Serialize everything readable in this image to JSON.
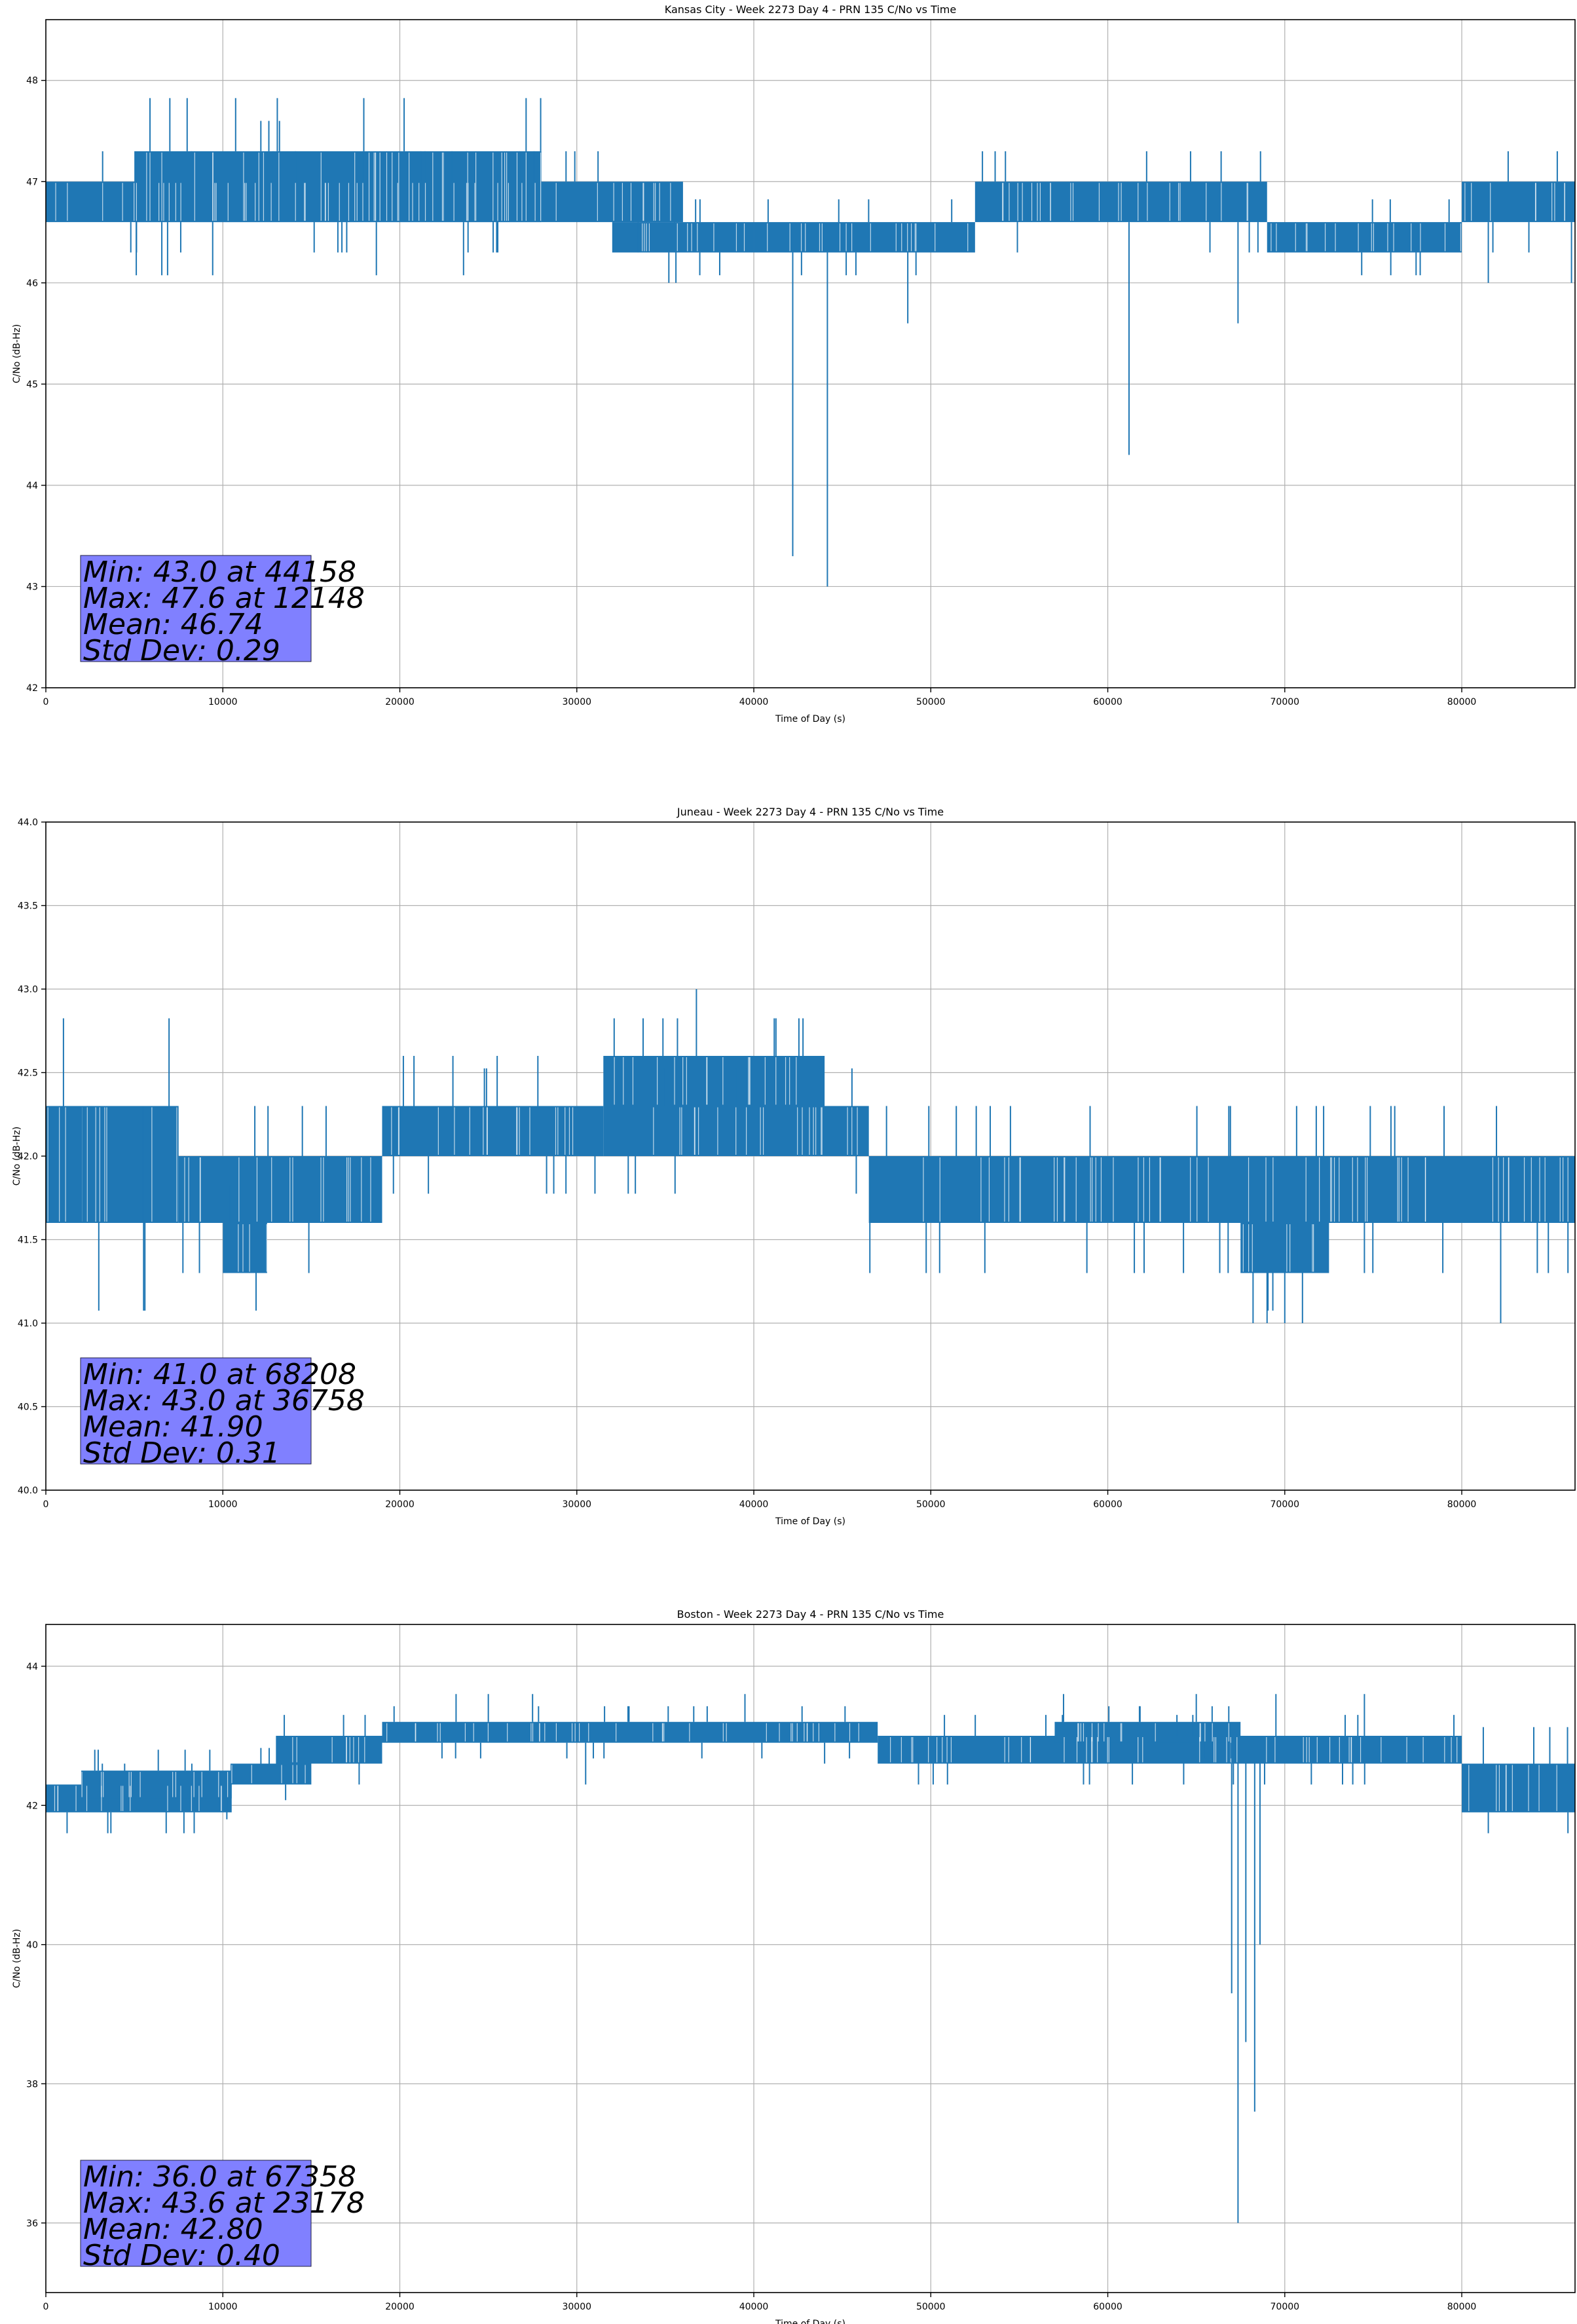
{
  "colors": {
    "series": "#1f77b4",
    "grid": "#b0b0b0",
    "stat_box": "#8080ff"
  },
  "chart_data": [
    {
      "type": "line",
      "title": "Kansas City - Week 2273 Day 4 - PRN 135 C/No vs Time",
      "xlabel": "Time of Day (s)",
      "ylabel": "C/No (dB-Hz)",
      "xlim": [
        0,
        86400
      ],
      "ylim": [
        42,
        48.6
      ],
      "xticks": [
        0,
        10000,
        20000,
        30000,
        40000,
        50000,
        60000,
        70000,
        80000
      ],
      "yticks": [
        42,
        43,
        44,
        45,
        46,
        47,
        48
      ],
      "ytick_labels": [
        "42",
        "43",
        "44",
        "45",
        "46",
        "47",
        "48"
      ],
      "grid": true,
      "stats": [
        "Min: 43.0 at 44158",
        "Max: 47.6 at 12148",
        "Mean: 46.74",
        "Std Dev: 0.29"
      ],
      "bands": [
        {
          "x": [
            0,
            28000
          ],
          "lo": 46.6,
          "hi": 47.0
        },
        {
          "x": [
            5000,
            28000
          ],
          "lo": 46.6,
          "hi": 47.3
        },
        {
          "x": [
            28000,
            36000
          ],
          "lo": 46.6,
          "hi": 47.0
        },
        {
          "x": [
            32000,
            40000
          ],
          "lo": 46.3,
          "hi": 46.6
        },
        {
          "x": [
            40000,
            52500
          ],
          "lo": 46.3,
          "hi": 46.6
        },
        {
          "x": [
            52500,
            69000
          ],
          "lo": 46.6,
          "hi": 47.0
        },
        {
          "x": [
            69000,
            80000
          ],
          "lo": 46.3,
          "hi": 46.6
        },
        {
          "x": [
            80000,
            86400
          ],
          "lo": 46.6,
          "hi": 47.0
        }
      ],
      "spikes": [
        {
          "x": 12148,
          "y": 47.6
        },
        {
          "x": 12600,
          "y": 47.6
        },
        {
          "x": 13200,
          "y": 47.6
        },
        {
          "x": 4800,
          "y": 46.3
        },
        {
          "x": 16500,
          "y": 46.3
        },
        {
          "x": 17000,
          "y": 46.3
        },
        {
          "x": 35200,
          "y": 46.0
        },
        {
          "x": 35600,
          "y": 46.0
        },
        {
          "x": 42200,
          "y": 43.3
        },
        {
          "x": 44158,
          "y": 43.0
        },
        {
          "x": 48700,
          "y": 45.6
        },
        {
          "x": 61200,
          "y": 44.3
        },
        {
          "x": 67358,
          "y": 45.6
        },
        {
          "x": 81500,
          "y": 46.0
        },
        {
          "x": 86200,
          "y": 46.0
        }
      ]
    },
    {
      "type": "line",
      "title": "Juneau - Week 2273 Day 4 - PRN 135 C/No vs Time",
      "xlabel": "Time of Day (s)",
      "ylabel": "C/No (dB-Hz)",
      "xlim": [
        0,
        86400
      ],
      "ylim": [
        40,
        44
      ],
      "xticks": [
        0,
        10000,
        20000,
        30000,
        40000,
        50000,
        60000,
        70000,
        80000
      ],
      "yticks": [
        40,
        40.5,
        41,
        41.5,
        42,
        42.5,
        43,
        43.5,
        44
      ],
      "ytick_labels": [
        "40.0",
        "40.5",
        "41.0",
        "41.5",
        "42.0",
        "42.5",
        "43.0",
        "43.5",
        "44.0"
      ],
      "grid": true,
      "stats": [
        "Min: 41.0 at 68208",
        "Max: 43.0 at 36758",
        "Mean: 41.90",
        "Std Dev: 0.31"
      ],
      "bands": [
        {
          "x": [
            0,
            7500
          ],
          "lo": 41.6,
          "hi": 42.3
        },
        {
          "x": [
            7500,
            19000
          ],
          "lo": 41.6,
          "hi": 42.0
        },
        {
          "x": [
            19000,
            31500
          ],
          "lo": 42.0,
          "hi": 42.3
        },
        {
          "x": [
            31500,
            44000
          ],
          "lo": 42.3,
          "hi": 42.6
        },
        {
          "x": [
            31500,
            46500
          ],
          "lo": 42.0,
          "hi": 42.3
        },
        {
          "x": [
            46500,
            86400
          ],
          "lo": 41.6,
          "hi": 42.0
        },
        {
          "x": [
            10000,
            12500
          ],
          "lo": 41.3,
          "hi": 41.6
        },
        {
          "x": [
            67500,
            72500
          ],
          "lo": 41.3,
          "hi": 41.6
        }
      ],
      "spikes": [
        {
          "x": 36758,
          "y": 43.0
        },
        {
          "x": 68208,
          "y": 41.0
        },
        {
          "x": 69000,
          "y": 41.0
        },
        {
          "x": 70000,
          "y": 41.0
        },
        {
          "x": 71000,
          "y": 41.0
        },
        {
          "x": 82200,
          "y": 41.0
        },
        {
          "x": 20200,
          "y": 42.6
        },
        {
          "x": 20800,
          "y": 42.6
        },
        {
          "x": 23000,
          "y": 42.6
        },
        {
          "x": 25500,
          "y": 42.6
        },
        {
          "x": 27800,
          "y": 42.6
        },
        {
          "x": 50500,
          "y": 41.3
        },
        {
          "x": 61500,
          "y": 41.3
        },
        {
          "x": 74500,
          "y": 41.3
        },
        {
          "x": 86000,
          "y": 41.3
        },
        {
          "x": 54500,
          "y": 42.3
        },
        {
          "x": 59000,
          "y": 42.3
        },
        {
          "x": 76000,
          "y": 42.3
        },
        {
          "x": 79000,
          "y": 42.3
        },
        {
          "x": 2000,
          "y": 42.3
        },
        {
          "x": 5500,
          "y": 42.3
        }
      ]
    },
    {
      "type": "line",
      "title": "Boston - Week 2273 Day 4 - PRN 135 C/No vs Time",
      "xlabel": "Time of Day (s)",
      "ylabel": "C/No (dB-Hz)",
      "xlim": [
        0,
        86400
      ],
      "ylim": [
        35.0,
        44.6
      ],
      "xticks": [
        0,
        10000,
        20000,
        30000,
        40000,
        50000,
        60000,
        70000,
        80000
      ],
      "yticks": [
        36,
        38,
        40,
        42,
        44
      ],
      "ytick_labels": [
        "36",
        "38",
        "40",
        "42",
        "44"
      ],
      "grid": true,
      "stats": [
        "Min: 36.0 at 67358",
        "Max: 43.6 at 23178",
        "Mean: 42.80",
        "Std Dev: 0.40"
      ],
      "bands": [
        {
          "x": [
            0,
            10500
          ],
          "lo": 41.9,
          "hi": 42.3
        },
        {
          "x": [
            2000,
            10500
          ],
          "lo": 42.1,
          "hi": 42.5
        },
        {
          "x": [
            10500,
            15000
          ],
          "lo": 42.3,
          "hi": 42.6
        },
        {
          "x": [
            13000,
            19000
          ],
          "lo": 42.6,
          "hi": 43.0
        },
        {
          "x": [
            19000,
            47000
          ],
          "lo": 42.9,
          "hi": 43.2
        },
        {
          "x": [
            47000,
            67000
          ],
          "lo": 42.6,
          "hi": 43.0
        },
        {
          "x": [
            57000,
            67500
          ],
          "lo": 42.9,
          "hi": 43.2
        },
        {
          "x": [
            67000,
            80000
          ],
          "lo": 42.6,
          "hi": 43.0
        },
        {
          "x": [
            80000,
            86400
          ],
          "lo": 41.9,
          "hi": 42.6
        }
      ],
      "spikes": [
        {
          "x": 23178,
          "y": 43.6
        },
        {
          "x": 25000,
          "y": 43.6
        },
        {
          "x": 27500,
          "y": 43.6
        },
        {
          "x": 39500,
          "y": 43.6
        },
        {
          "x": 57500,
          "y": 43.6
        },
        {
          "x": 65000,
          "y": 43.6
        },
        {
          "x": 69500,
          "y": 43.6
        },
        {
          "x": 74500,
          "y": 43.6
        },
        {
          "x": 67358,
          "y": 36.0
        },
        {
          "x": 67000,
          "y": 39.3
        },
        {
          "x": 67800,
          "y": 38.6
        },
        {
          "x": 68300,
          "y": 37.6
        },
        {
          "x": 68600,
          "y": 40.0
        },
        {
          "x": 1200,
          "y": 41.6
        },
        {
          "x": 3500,
          "y": 41.6
        },
        {
          "x": 6800,
          "y": 41.6
        },
        {
          "x": 81500,
          "y": 41.6
        },
        {
          "x": 86000,
          "y": 41.6
        },
        {
          "x": 30500,
          "y": 42.3
        },
        {
          "x": 44000,
          "y": 42.6
        }
      ]
    }
  ]
}
